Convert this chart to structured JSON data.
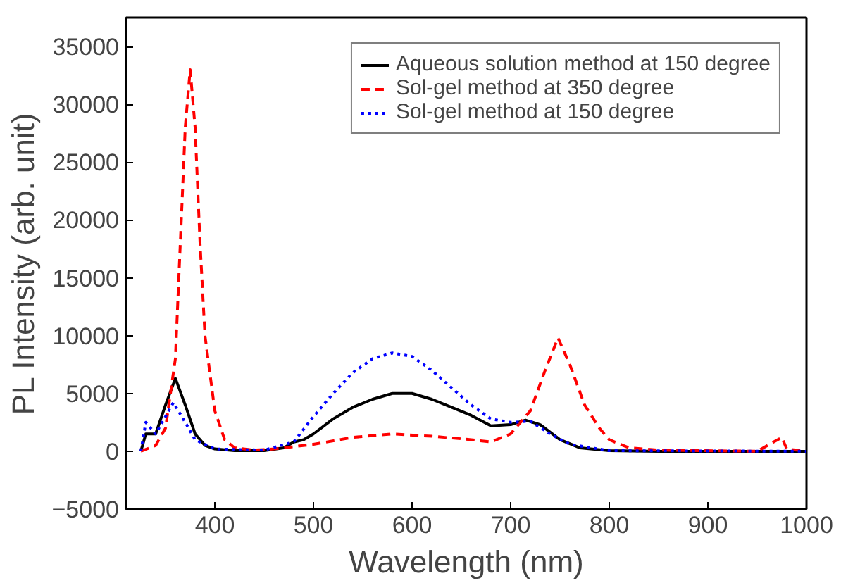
{
  "chart_data": {
    "type": "line",
    "xlabel": "Wavelength (nm)",
    "ylabel": "PL Intensity (arb. unit)",
    "xlim": [
      310,
      1000
    ],
    "xticks": [
      400,
      500,
      600,
      700,
      800,
      900,
      1000
    ],
    "ylim": [
      -5000,
      37500
    ],
    "yticks": [
      -5000,
      0,
      5000,
      10000,
      15000,
      20000,
      25000,
      30000,
      35000
    ],
    "grid": false,
    "legend": "top right",
    "series": [
      {
        "name": "Aqueous solution method at 150 degree",
        "color": "#000000",
        "line_style": "solid",
        "x": [
          325,
          330,
          340,
          350,
          360,
          370,
          380,
          390,
          400,
          420,
          450,
          470,
          480,
          490,
          500,
          520,
          540,
          560,
          580,
          600,
          620,
          640,
          660,
          680,
          700,
          715,
          730,
          750,
          770,
          800,
          850,
          1000
        ],
        "values": [
          0,
          1500,
          1500,
          4000,
          6300,
          4000,
          1500,
          500,
          200,
          50,
          50,
          300,
          800,
          1000,
          1500,
          2800,
          3800,
          4500,
          5000,
          5000,
          4500,
          3800,
          3100,
          2200,
          2300,
          2700,
          2300,
          1000,
          300,
          50,
          0,
          0
        ]
      },
      {
        "name": "Sol-gel method at 350 degree",
        "color": "#ff0000",
        "line_style": "dashed",
        "x": [
          325,
          340,
          350,
          360,
          365,
          370,
          375,
          380,
          385,
          390,
          400,
          410,
          420,
          440,
          460,
          500,
          540,
          580,
          620,
          660,
          680,
          700,
          720,
          735,
          748,
          760,
          775,
          790,
          800,
          820,
          850,
          950,
          975,
          980,
          1000
        ],
        "values": [
          0,
          500,
          2000,
          8000,
          18000,
          28000,
          33000,
          28000,
          18000,
          10000,
          3500,
          1000,
          300,
          100,
          200,
          600,
          1200,
          1500,
          1300,
          1000,
          800,
          1500,
          3500,
          7000,
          9800,
          7500,
          4000,
          2000,
          1000,
          300,
          100,
          0,
          1200,
          200,
          0
        ]
      },
      {
        "name": "Sol-gel method at 150 degree",
        "color": "#0000ff",
        "line_style": "dotted",
        "x": [
          325,
          330,
          340,
          350,
          358,
          370,
          380,
          400,
          450,
          480,
          500,
          520,
          540,
          560,
          580,
          600,
          620,
          640,
          660,
          680,
          700,
          720,
          740,
          760,
          800,
          1000
        ],
        "values": [
          0,
          2500,
          1500,
          3000,
          4200,
          2500,
          1000,
          200,
          100,
          800,
          3000,
          5000,
          6800,
          8000,
          8500,
          8200,
          7000,
          5500,
          4000,
          2800,
          2500,
          2600,
          1500,
          600,
          50,
          0
        ]
      }
    ]
  }
}
